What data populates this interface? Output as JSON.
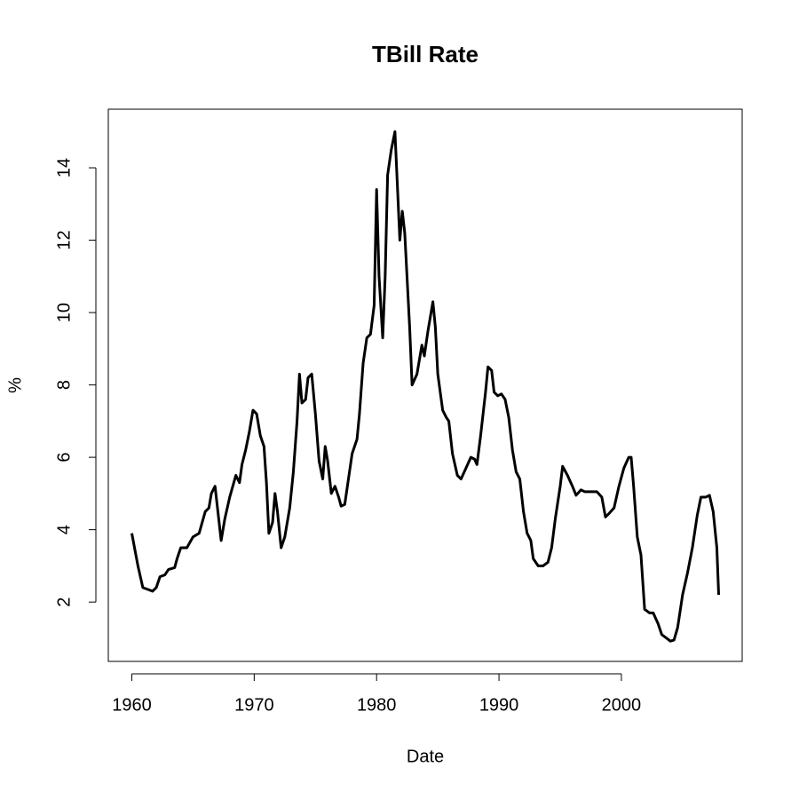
{
  "chart_data": {
    "type": "line",
    "title": "TBill Rate",
    "x_label": "Date",
    "y_label": "%",
    "xlim": [
      1958.08,
      2009.87
    ],
    "ylim": [
      0.36,
      15.62
    ],
    "xticks": [
      1960,
      1970,
      1980,
      1990,
      2000
    ],
    "yticks": [
      2,
      4,
      6,
      8,
      10,
      12,
      14
    ],
    "color": "#000000",
    "x": [
      1960.0,
      1960.5,
      1960.9,
      1961.3,
      1961.7,
      1962.0,
      1962.3,
      1962.7,
      1963.0,
      1963.5,
      1963.7,
      1964.0,
      1964.5,
      1965.0,
      1965.5,
      1966.0,
      1966.3,
      1966.5,
      1966.8,
      1967.0,
      1967.3,
      1967.6,
      1968.0,
      1968.5,
      1968.8,
      1969.0,
      1969.3,
      1969.6,
      1969.9,
      1970.2,
      1970.5,
      1970.8,
      1971.0,
      1971.2,
      1971.5,
      1971.7,
      1971.9,
      1972.2,
      1972.5,
      1972.9,
      1973.2,
      1973.5,
      1973.7,
      1973.9,
      1974.2,
      1974.4,
      1974.7,
      1975.0,
      1975.3,
      1975.6,
      1975.8,
      1976.0,
      1976.3,
      1976.6,
      1976.9,
      1977.1,
      1977.4,
      1977.7,
      1978.0,
      1978.4,
      1978.6,
      1978.9,
      1979.2,
      1979.5,
      1979.8,
      1980.0,
      1980.2,
      1980.5,
      1980.7,
      1980.9,
      1981.2,
      1981.5,
      1981.7,
      1981.9,
      1982.1,
      1982.3,
      1982.7,
      1982.9,
      1983.3,
      1983.7,
      1983.9,
      1984.2,
      1984.6,
      1984.8,
      1985.0,
      1985.4,
      1985.7,
      1985.9,
      1986.2,
      1986.6,
      1986.9,
      1987.3,
      1987.7,
      1988.0,
      1988.2,
      1988.5,
      1988.9,
      1989.1,
      1989.4,
      1989.6,
      1989.9,
      1990.2,
      1990.5,
      1990.8,
      1991.1,
      1991.4,
      1991.7,
      1992.0,
      1992.3,
      1992.6,
      1992.8,
      1993.2,
      1993.6,
      1994.0,
      1994.3,
      1994.6,
      1995.0,
      1995.2,
      1995.6,
      1996.0,
      1996.3,
      1996.7,
      1997.0,
      1997.5,
      1998.0,
      1998.4,
      1998.7,
      1999.0,
      1999.4,
      1999.8,
      2000.2,
      2000.6,
      2000.8,
      2001.0,
      2001.3,
      2001.6,
      2001.9,
      2002.3,
      2002.6,
      2003.0,
      2003.3,
      2003.7,
      2004.0,
      2004.3,
      2004.6,
      2005.0,
      2005.4,
      2005.8,
      2006.2,
      2006.5,
      2006.9,
      2007.2,
      2007.5,
      2007.8,
      2007.95
    ],
    "values": [
      3.9,
      3.0,
      2.4,
      2.35,
      2.3,
      2.4,
      2.7,
      2.75,
      2.9,
      2.95,
      3.2,
      3.5,
      3.5,
      3.8,
      3.9,
      4.5,
      4.6,
      5.0,
      5.2,
      4.6,
      3.7,
      4.3,
      4.9,
      5.5,
      5.3,
      5.8,
      6.2,
      6.7,
      7.3,
      7.2,
      6.6,
      6.3,
      5.3,
      3.9,
      4.2,
      5.0,
      4.5,
      3.5,
      3.8,
      4.6,
      5.6,
      7.0,
      8.3,
      7.5,
      7.6,
      8.2,
      8.3,
      7.2,
      5.9,
      5.4,
      6.3,
      5.9,
      5.0,
      5.2,
      4.9,
      4.65,
      4.7,
      5.4,
      6.1,
      6.5,
      7.2,
      8.6,
      9.3,
      9.4,
      10.2,
      13.4,
      11.0,
      9.3,
      11.0,
      13.8,
      14.5,
      15.0,
      13.5,
      12.0,
      12.8,
      12.2,
      9.6,
      8.0,
      8.3,
      9.1,
      8.8,
      9.5,
      10.3,
      9.6,
      8.3,
      7.3,
      7.1,
      7.0,
      6.1,
      5.5,
      5.4,
      5.7,
      6.0,
      5.95,
      5.8,
      6.6,
      7.8,
      8.5,
      8.4,
      7.8,
      7.7,
      7.75,
      7.6,
      7.1,
      6.2,
      5.6,
      5.4,
      4.5,
      3.9,
      3.7,
      3.2,
      3.0,
      3.0,
      3.1,
      3.5,
      4.3,
      5.2,
      5.75,
      5.5,
      5.2,
      4.95,
      5.1,
      5.05,
      5.05,
      5.05,
      4.9,
      4.35,
      4.45,
      4.6,
      5.2,
      5.7,
      6.0,
      6.0,
      5.2,
      3.8,
      3.3,
      1.8,
      1.7,
      1.7,
      1.4,
      1.1,
      1.0,
      0.92,
      0.95,
      1.3,
      2.2,
      2.8,
      3.5,
      4.4,
      4.9,
      4.9,
      4.95,
      4.5,
      3.5,
      2.2
    ]
  }
}
